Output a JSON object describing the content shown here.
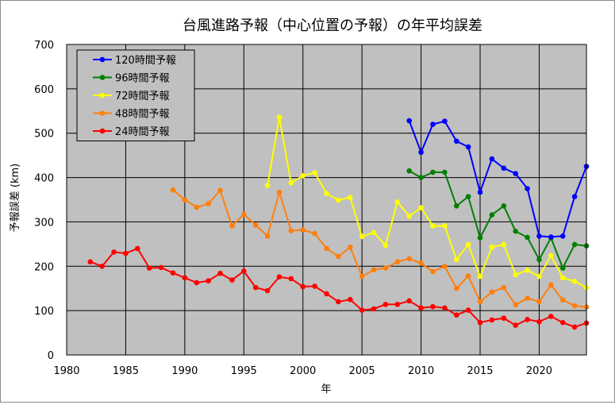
{
  "chart_data": {
    "type": "line",
    "title": "台風進路予報（中心位置の予報）の年平均誤差",
    "xlabel": "年",
    "ylabel": "予報誤差 (km)",
    "xlim": [
      1980,
      2024
    ],
    "ylim": [
      0,
      700
    ],
    "x_ticks": [
      "1980",
      "1985",
      "1990",
      "1995",
      "2000",
      "2005",
      "2010",
      "2015",
      "2020"
    ],
    "y_ticks": [
      "0",
      "100",
      "200",
      "300",
      "400",
      "500",
      "600",
      "700"
    ],
    "grid": true,
    "legend_position": "top-left",
    "series": [
      {
        "name": "120時間予報",
        "color": "#0000ff",
        "points": [
          [
            2009,
            528
          ],
          [
            2010,
            457
          ],
          [
            2011,
            520
          ],
          [
            2012,
            527
          ],
          [
            2013,
            482
          ],
          [
            2014,
            469
          ],
          [
            2015,
            367
          ],
          [
            2016,
            442
          ],
          [
            2017,
            421
          ],
          [
            2018,
            409
          ],
          [
            2019,
            375
          ],
          [
            2020,
            268
          ],
          [
            2021,
            266
          ],
          [
            2022,
            268
          ],
          [
            2023,
            357
          ],
          [
            2024,
            425
          ]
        ]
      },
      {
        "name": "96時間予報",
        "color": "#008000",
        "points": [
          [
            2009,
            415
          ],
          [
            2010,
            400
          ],
          [
            2011,
            412
          ],
          [
            2012,
            412
          ],
          [
            2013,
            336
          ],
          [
            2014,
            357
          ],
          [
            2015,
            264
          ],
          [
            2016,
            316
          ],
          [
            2017,
            336
          ],
          [
            2018,
            279
          ],
          [
            2019,
            265
          ],
          [
            2020,
            215
          ],
          [
            2021,
            264
          ],
          [
            2022,
            196
          ],
          [
            2023,
            249
          ],
          [
            2024,
            246
          ]
        ]
      },
      {
        "name": "72時間予報",
        "color": "#ffff00",
        "points": [
          [
            1997,
            382
          ],
          [
            1998,
            536
          ],
          [
            1999,
            388
          ],
          [
            2000,
            404
          ],
          [
            2001,
            411
          ],
          [
            2002,
            364
          ],
          [
            2003,
            349
          ],
          [
            2004,
            355
          ],
          [
            2005,
            267
          ],
          [
            2006,
            276
          ],
          [
            2007,
            247
          ],
          [
            2008,
            345
          ],
          [
            2009,
            313
          ],
          [
            2010,
            332
          ],
          [
            2011,
            291
          ],
          [
            2012,
            291
          ],
          [
            2013,
            215
          ],
          [
            2014,
            249
          ],
          [
            2015,
            177
          ],
          [
            2016,
            243
          ],
          [
            2017,
            249
          ],
          [
            2018,
            181
          ],
          [
            2019,
            191
          ],
          [
            2020,
            177
          ],
          [
            2021,
            224
          ],
          [
            2022,
            174
          ],
          [
            2023,
            166
          ],
          [
            2024,
            152
          ]
        ]
      },
      {
        "name": "48時間予報",
        "color": "#ff7f0e",
        "points": [
          [
            1989,
            372
          ],
          [
            1990,
            350
          ],
          [
            1991,
            333
          ],
          [
            1992,
            341
          ],
          [
            1993,
            371
          ],
          [
            1994,
            291
          ],
          [
            1995,
            317
          ],
          [
            1996,
            293
          ],
          [
            1997,
            268
          ],
          [
            1998,
            367
          ],
          [
            1999,
            280
          ],
          [
            2000,
            282
          ],
          [
            2001,
            274
          ],
          [
            2002,
            240
          ],
          [
            2003,
            222
          ],
          [
            2004,
            243
          ],
          [
            2005,
            177
          ],
          [
            2006,
            192
          ],
          [
            2007,
            196
          ],
          [
            2008,
            210
          ],
          [
            2009,
            217
          ],
          [
            2010,
            207
          ],
          [
            2011,
            188
          ],
          [
            2012,
            200
          ],
          [
            2013,
            150
          ],
          [
            2014,
            178
          ],
          [
            2015,
            120
          ],
          [
            2016,
            142
          ],
          [
            2017,
            152
          ],
          [
            2018,
            113
          ],
          [
            2019,
            128
          ],
          [
            2020,
            120
          ],
          [
            2021,
            158
          ],
          [
            2022,
            124
          ],
          [
            2023,
            111
          ],
          [
            2024,
            108
          ]
        ]
      },
      {
        "name": "24時間予報",
        "color": "#ff0000",
        "points": [
          [
            1982,
            210
          ],
          [
            1983,
            200
          ],
          [
            1984,
            232
          ],
          [
            1985,
            229
          ],
          [
            1986,
            240
          ],
          [
            1987,
            196
          ],
          [
            1988,
            197
          ],
          [
            1989,
            185
          ],
          [
            1990,
            174
          ],
          [
            1991,
            163
          ],
          [
            1992,
            167
          ],
          [
            1993,
            184
          ],
          [
            1994,
            169
          ],
          [
            1995,
            189
          ],
          [
            1996,
            152
          ],
          [
            1997,
            145
          ],
          [
            1998,
            176
          ],
          [
            1999,
            172
          ],
          [
            2000,
            154
          ],
          [
            2001,
            155
          ],
          [
            2002,
            138
          ],
          [
            2003,
            120
          ],
          [
            2004,
            125
          ],
          [
            2005,
            101
          ],
          [
            2006,
            104
          ],
          [
            2007,
            114
          ],
          [
            2008,
            114
          ],
          [
            2009,
            122
          ],
          [
            2010,
            106
          ],
          [
            2011,
            109
          ],
          [
            2012,
            106
          ],
          [
            2013,
            90
          ],
          [
            2014,
            101
          ],
          [
            2015,
            73
          ],
          [
            2016,
            79
          ],
          [
            2017,
            83
          ],
          [
            2018,
            67
          ],
          [
            2019,
            80
          ],
          [
            2020,
            75
          ],
          [
            2021,
            87
          ],
          [
            2022,
            73
          ],
          [
            2023,
            63
          ],
          [
            2024,
            72
          ]
        ]
      }
    ]
  }
}
